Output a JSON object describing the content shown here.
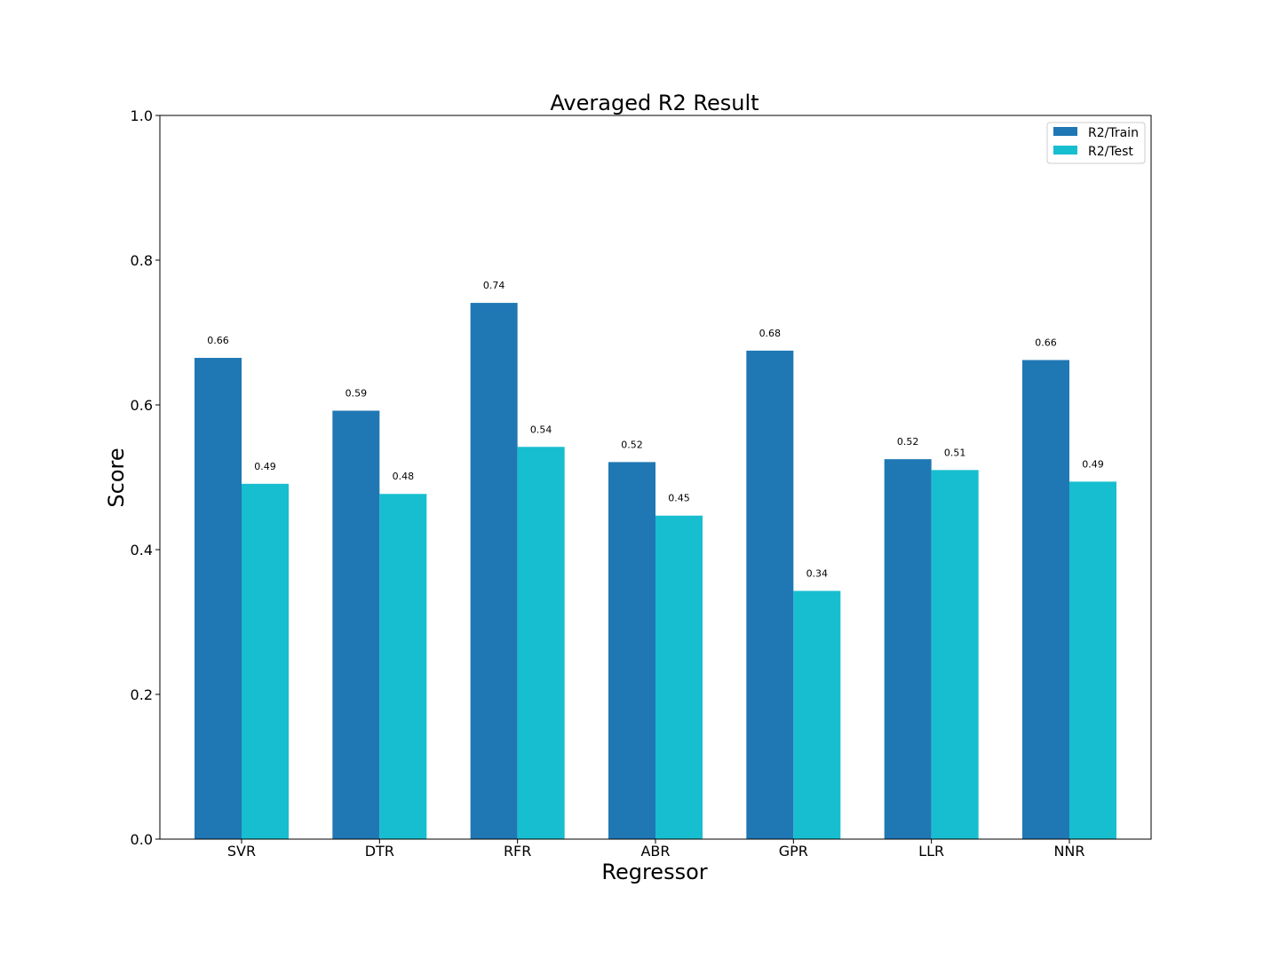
{
  "chart_data": {
    "type": "bar",
    "title": "Averaged R2 Result",
    "xlabel": "Regressor",
    "ylabel": "Score",
    "categories": [
      "SVR",
      "DTR",
      "RFR",
      "ABR",
      "GPR",
      "LLR",
      "NNR"
    ],
    "ylim": [
      0,
      1.0
    ],
    "yticks": [
      "0.0",
      "0.2",
      "0.4",
      "0.6",
      "0.8",
      "1.0"
    ],
    "grid": false,
    "legend_position": "top-right",
    "series": [
      {
        "name": "R2/Train",
        "color": "#1f77b4",
        "values": [
          0.665,
          0.592,
          0.741,
          0.521,
          0.675,
          0.525,
          0.662
        ],
        "labels": [
          "0.66",
          "0.59",
          "0.74",
          "0.52",
          "0.68",
          "0.52",
          "0.66"
        ]
      },
      {
        "name": "R2/Test",
        "color": "#17becf",
        "values": [
          0.491,
          0.477,
          0.542,
          0.447,
          0.343,
          0.51,
          0.494
        ],
        "labels": [
          "0.49",
          "0.48",
          "0.54",
          "0.45",
          "0.34",
          "0.51",
          "0.49"
        ]
      }
    ]
  }
}
